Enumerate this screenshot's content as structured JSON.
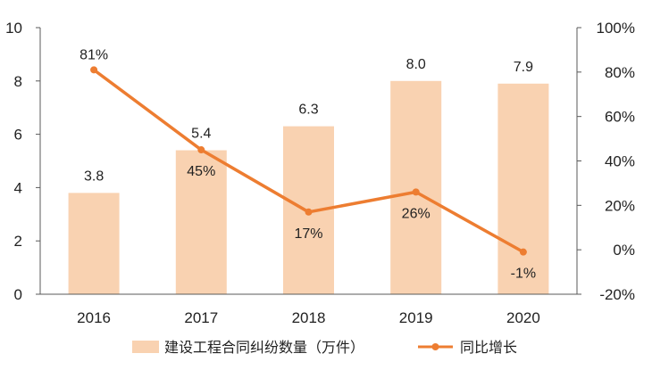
{
  "chart_data": {
    "type": "bar+line",
    "categories": [
      "2016",
      "2017",
      "2018",
      "2019",
      "2020"
    ],
    "bar_series": {
      "name": "建设工程合同纠纷数量（万件）",
      "values": [
        3.8,
        5.4,
        6.3,
        8.0,
        7.9
      ],
      "labels": [
        "3.8",
        "5.4",
        "6.3",
        "8.0",
        "7.9"
      ],
      "color": "#F9D2B1"
    },
    "line_series": {
      "name": "同比增长",
      "values": [
        81,
        45,
        17,
        26,
        -1
      ],
      "labels": [
        "81%",
        "45%",
        "17%",
        "26%",
        "-1%"
      ],
      "color": "#ED7D31"
    },
    "y_left": {
      "min": 0,
      "max": 10,
      "ticks": [
        "0",
        "2",
        "4",
        "6",
        "8",
        "10"
      ]
    },
    "y_right": {
      "min": -20,
      "max": 100,
      "ticks": [
        "-20%",
        "0%",
        "20%",
        "40%",
        "60%",
        "80%",
        "100%"
      ]
    },
    "legend_position": "bottom",
    "grid": false
  }
}
